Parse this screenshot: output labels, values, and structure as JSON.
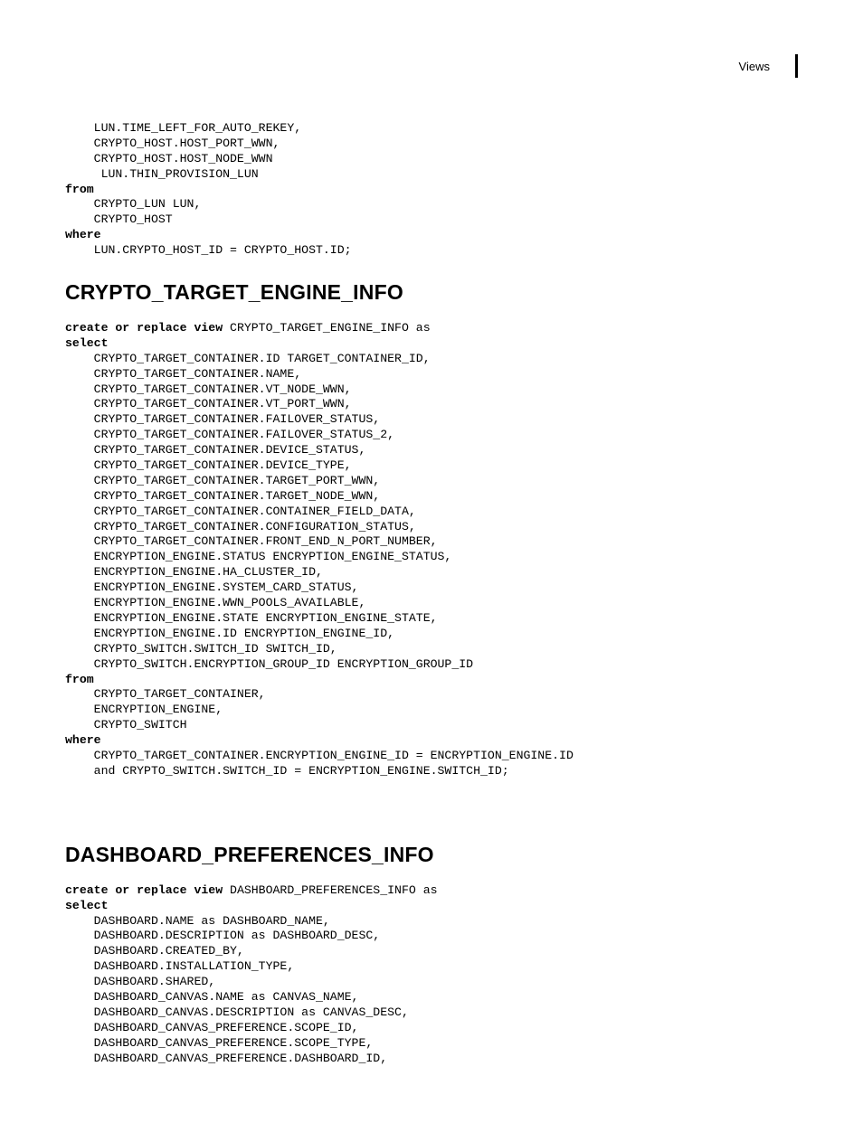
{
  "header": {
    "label": "Views"
  },
  "typography": {
    "code_font": "Courier New",
    "code_fontsize_pt": 10,
    "heading_font": "Arial",
    "heading_fontsize_pt": 17,
    "text_color": "#000000",
    "background_color": "#ffffff"
  },
  "block1": {
    "line1": "    LUN.TIME_LEFT_FOR_AUTO_REKEY,",
    "line2": "    CRYPTO_HOST.HOST_PORT_WWN,",
    "line3": "    CRYPTO_HOST.HOST_NODE_WWN",
    "line4": "     LUN.THIN_PROVISION_LUN",
    "kw_from": "from",
    "line5": "    CRYPTO_LUN LUN,",
    "line6": "    CRYPTO_HOST",
    "kw_where": "where",
    "line7": "    LUN.CRYPTO_HOST_ID = CRYPTO_HOST.ID;"
  },
  "section1": {
    "title": "CRYPTO_TARGET_ENGINE_INFO",
    "kw_create": "create or replace view ",
    "create_tail": "CRYPTO_TARGET_ENGINE_INFO as",
    "kw_select": "select",
    "l1": "    CRYPTO_TARGET_CONTAINER.ID TARGET_CONTAINER_ID,",
    "l2": "    CRYPTO_TARGET_CONTAINER.NAME,",
    "l3": "    CRYPTO_TARGET_CONTAINER.VT_NODE_WWN,",
    "l4": "    CRYPTO_TARGET_CONTAINER.VT_PORT_WWN,",
    "l5": "    CRYPTO_TARGET_CONTAINER.FAILOVER_STATUS,",
    "l6": "    CRYPTO_TARGET_CONTAINER.FAILOVER_STATUS_2,",
    "l7": "    CRYPTO_TARGET_CONTAINER.DEVICE_STATUS,",
    "l8": "    CRYPTO_TARGET_CONTAINER.DEVICE_TYPE,",
    "l9": "    CRYPTO_TARGET_CONTAINER.TARGET_PORT_WWN,",
    "l10": "    CRYPTO_TARGET_CONTAINER.TARGET_NODE_WWN,",
    "l11": "    CRYPTO_TARGET_CONTAINER.CONTAINER_FIELD_DATA,",
    "l12": "    CRYPTO_TARGET_CONTAINER.CONFIGURATION_STATUS,",
    "l13": "    CRYPTO_TARGET_CONTAINER.FRONT_END_N_PORT_NUMBER,",
    "l14": "    ENCRYPTION_ENGINE.STATUS ENCRYPTION_ENGINE_STATUS,",
    "l15": "    ENCRYPTION_ENGINE.HA_CLUSTER_ID,",
    "l16": "    ENCRYPTION_ENGINE.SYSTEM_CARD_STATUS,",
    "l17": "    ENCRYPTION_ENGINE.WWN_POOLS_AVAILABLE,",
    "l18": "    ENCRYPTION_ENGINE.STATE ENCRYPTION_ENGINE_STATE,",
    "l19": "    ENCRYPTION_ENGINE.ID ENCRYPTION_ENGINE_ID,",
    "l20": "    CRYPTO_SWITCH.SWITCH_ID SWITCH_ID,",
    "l21": "    CRYPTO_SWITCH.ENCRYPTION_GROUP_ID ENCRYPTION_GROUP_ID",
    "kw_from": "from",
    "l22": "    CRYPTO_TARGET_CONTAINER,",
    "l23": "    ENCRYPTION_ENGINE,",
    "l24": "    CRYPTO_SWITCH",
    "kw_where": "where",
    "l25": "    CRYPTO_TARGET_CONTAINER.ENCRYPTION_ENGINE_ID = ENCRYPTION_ENGINE.ID",
    "l26": "    and CRYPTO_SWITCH.SWITCH_ID = ENCRYPTION_ENGINE.SWITCH_ID;"
  },
  "section2": {
    "title": "DASHBOARD_PREFERENCES_INFO",
    "kw_create": "create or replace view ",
    "create_tail": "DASHBOARD_PREFERENCES_INFO as",
    "kw_select": "select",
    "l1": "    DASHBOARD.NAME as DASHBOARD_NAME,",
    "l2": "    DASHBOARD.DESCRIPTION as DASHBOARD_DESC,",
    "l3": "    DASHBOARD.CREATED_BY,",
    "l4": "    DASHBOARD.INSTALLATION_TYPE,",
    "l5": "    DASHBOARD.SHARED,",
    "l6": "    DASHBOARD_CANVAS.NAME as CANVAS_NAME,",
    "l7": "    DASHBOARD_CANVAS.DESCRIPTION as CANVAS_DESC,",
    "l8": "    DASHBOARD_CANVAS_PREFERENCE.SCOPE_ID,",
    "l9": "    DASHBOARD_CANVAS_PREFERENCE.SCOPE_TYPE,",
    "l10": "    DASHBOARD_CANVAS_PREFERENCE.DASHBOARD_ID,"
  }
}
